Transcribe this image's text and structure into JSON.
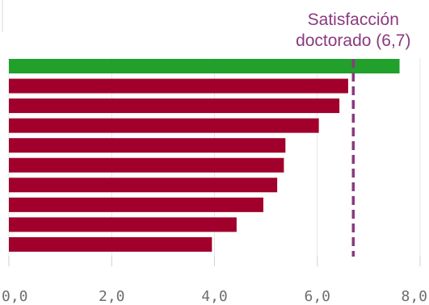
{
  "chart_data": {
    "type": "bar",
    "orientation": "horizontal",
    "values": [
      7.6,
      6.6,
      6.43,
      6.03,
      5.38,
      5.35,
      5.22,
      4.95,
      4.43,
      3.95
    ],
    "bar_colors": [
      "#21a02c",
      "#a0002b",
      "#a0002b",
      "#a0002b",
      "#a0002b",
      "#a0002b",
      "#a0002b",
      "#a0002b",
      "#a0002b",
      "#a0002b"
    ],
    "xlim": [
      0,
      8
    ],
    "xticks": [
      0,
      2,
      4,
      6,
      8
    ],
    "xtick_labels": [
      "0,0",
      "2,0",
      "4,0",
      "6,0",
      "8,0"
    ],
    "grid": true,
    "reference_line": {
      "value": 6.7,
      "label_line1": "Satisfacción",
      "label_line2": "doctorado (6,7)",
      "color": "#8a3a7e",
      "style": "dashed"
    }
  }
}
